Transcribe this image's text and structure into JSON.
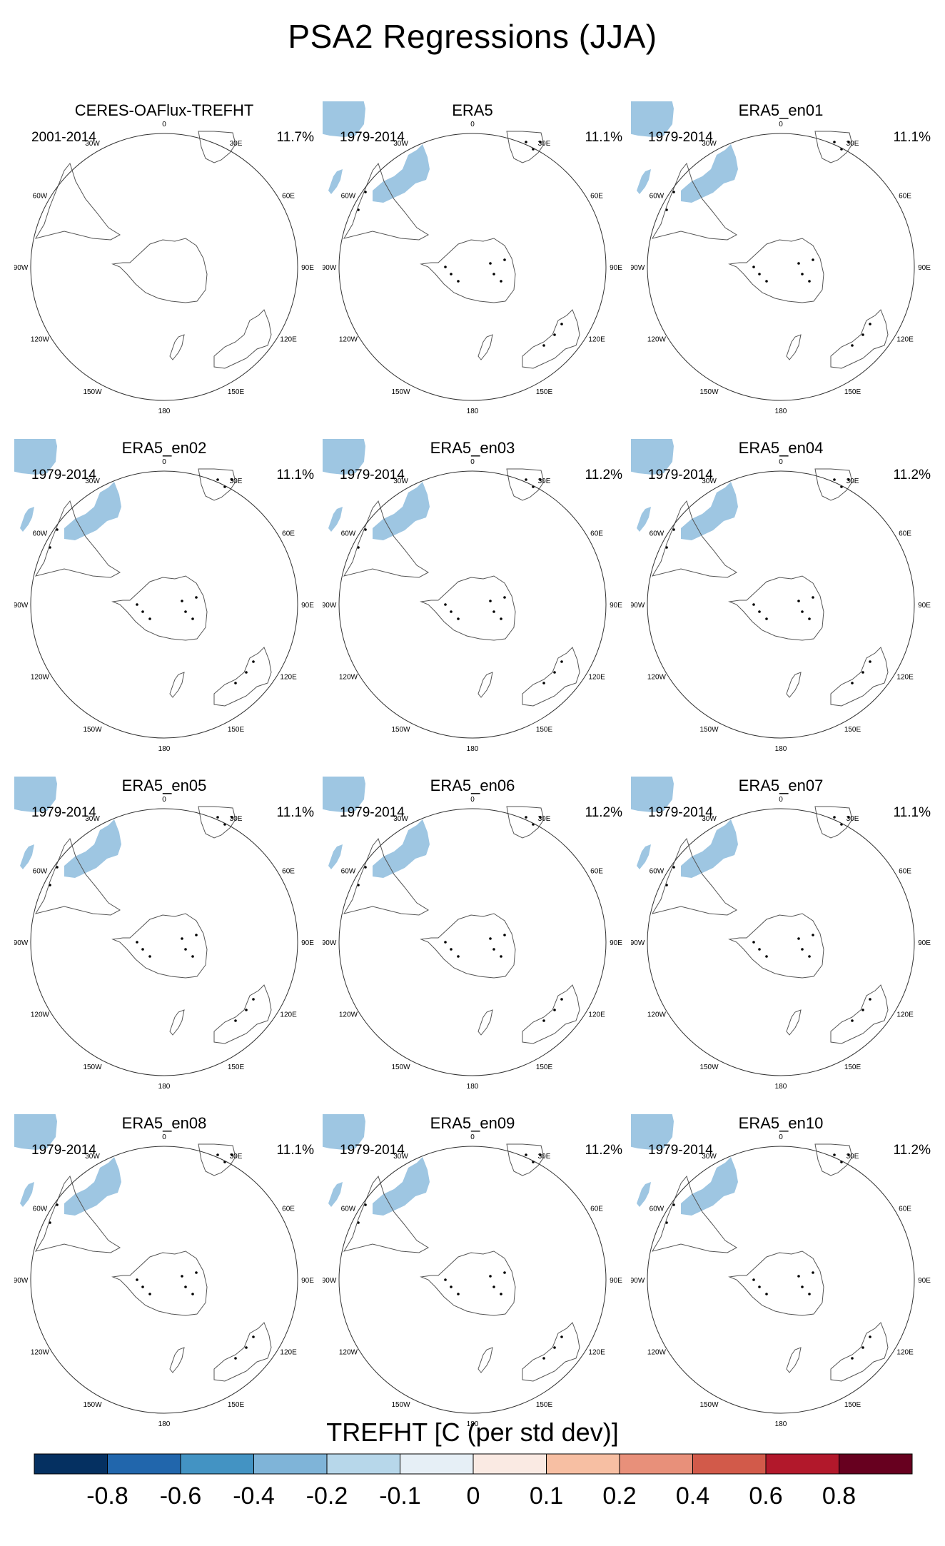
{
  "title": "PSA2 Regressions (JJA)",
  "panels": [
    {
      "name": "CERES-OAFlux-TREFHT",
      "period": "2001-2014",
      "pct": "11.7%",
      "filled": false
    },
    {
      "name": "ERA5",
      "period": "1979-2014",
      "pct": "11.1%",
      "filled": true
    },
    {
      "name": "ERA5_en01",
      "period": "1979-2014",
      "pct": "11.1%",
      "filled": true
    },
    {
      "name": "ERA5_en02",
      "period": "1979-2014",
      "pct": "11.1%",
      "filled": true
    },
    {
      "name": "ERA5_en03",
      "period": "1979-2014",
      "pct": "11.2%",
      "filled": true
    },
    {
      "name": "ERA5_en04",
      "period": "1979-2014",
      "pct": "11.2%",
      "filled": true
    },
    {
      "name": "ERA5_en05",
      "period": "1979-2014",
      "pct": "11.1%",
      "filled": true
    },
    {
      "name": "ERA5_en06",
      "period": "1979-2014",
      "pct": "11.2%",
      "filled": true
    },
    {
      "name": "ERA5_en07",
      "period": "1979-2014",
      "pct": "11.1%",
      "filled": true
    },
    {
      "name": "ERA5_en08",
      "period": "1979-2014",
      "pct": "11.1%",
      "filled": true
    },
    {
      "name": "ERA5_en09",
      "period": "1979-2014",
      "pct": "11.2%",
      "filled": true
    },
    {
      "name": "ERA5_en10",
      "period": "1979-2014",
      "pct": "11.2%",
      "filled": true
    }
  ],
  "lon_labels": [
    "0",
    "30E",
    "60E",
    "90E",
    "120E",
    "150E",
    "180",
    "150W",
    "120W",
    "90W",
    "60W",
    "30W"
  ],
  "colorbar": {
    "title": "TREFHT [C (per std dev)]",
    "ticks": [
      "-0.8",
      "-0.6",
      "-0.4",
      "-0.2",
      "-0.1",
      "0",
      "0.1",
      "0.2",
      "0.4",
      "0.6",
      "0.8"
    ],
    "colors": [
      "#053061",
      "#2166ac",
      "#4393c3",
      "#7fb4d8",
      "#b7d7ea",
      "#e6eff6",
      "#faeae3",
      "#f7bfa3",
      "#e8907a",
      "#d25a4a",
      "#b2182b",
      "#67001f"
    ]
  }
}
